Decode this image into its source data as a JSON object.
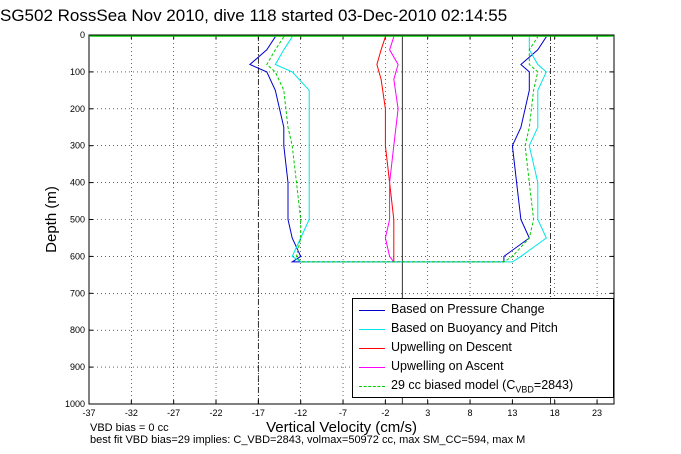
{
  "title": "SG502 RossSea Nov 2010, dive 118 started 03-Dec-2010 02:14:55",
  "notes": {
    "line1": "VBD bias = 0 cc",
    "line2": "best fit VBD bias=29 implies: C_VBD=2843, volmax=50972 cc, max SM_CC=594, max M"
  },
  "chart_data": {
    "type": "line",
    "xlabel": "Vertical Velocity (cm/s)",
    "ylabel": "Depth (m)",
    "xlim": [
      -37,
      25
    ],
    "ylim": [
      1000,
      0
    ],
    "x_ticks": [
      -37,
      -32,
      -27,
      -22,
      -17,
      -12,
      -7,
      -2,
      3,
      8,
      13,
      18,
      23
    ],
    "y_ticks": [
      0,
      100,
      200,
      300,
      400,
      500,
      600,
      700,
      800,
      900,
      1000
    ],
    "grid": true,
    "legend_position": "bottom-right",
    "reference_lines": {
      "vertical_solid": [
        0
      ],
      "vertical_dashdot": [
        -17,
        17.5
      ]
    },
    "series": [
      {
        "name": "Based on Pressure Change",
        "color": "#0000cc",
        "descent": [
          [
            -15,
            5
          ],
          [
            -16,
            40
          ],
          [
            -18,
            80
          ],
          [
            -16,
            100
          ],
          [
            -15,
            150
          ],
          [
            -14,
            250
          ],
          [
            -14,
            300
          ],
          [
            -13.5,
            400
          ],
          [
            -13.5,
            500
          ],
          [
            -13,
            550
          ],
          [
            -12,
            600
          ],
          [
            -13,
            615
          ]
        ],
        "ascent": [
          [
            17,
            5
          ],
          [
            16,
            40
          ],
          [
            14,
            80
          ],
          [
            15,
            100
          ],
          [
            15,
            150
          ],
          [
            14,
            250
          ],
          [
            13,
            300
          ],
          [
            13.5,
            400
          ],
          [
            14,
            500
          ],
          [
            15,
            550
          ],
          [
            12,
            600
          ],
          [
            12,
            615
          ]
        ]
      },
      {
        "name": "Based on Buoyancy and Pitch",
        "color": "#00e5e5",
        "descent": [
          [
            -13,
            5
          ],
          [
            -14,
            40
          ],
          [
            -15,
            80
          ],
          [
            -13,
            100
          ],
          [
            -11,
            150
          ],
          [
            -11,
            250
          ],
          [
            -11,
            300
          ],
          [
            -11,
            400
          ],
          [
            -11,
            500
          ],
          [
            -12,
            550
          ],
          [
            -13,
            600
          ],
          [
            -12,
            615
          ]
        ],
        "ascent": [
          [
            15,
            5
          ],
          [
            15,
            40
          ],
          [
            16,
            80
          ],
          [
            17,
            100
          ],
          [
            16,
            150
          ],
          [
            16,
            250
          ],
          [
            15,
            300
          ],
          [
            16,
            400
          ],
          [
            16,
            500
          ],
          [
            17,
            550
          ],
          [
            14,
            600
          ],
          [
            13,
            615
          ]
        ]
      },
      {
        "name": "Upwelling on Descent",
        "color": "#ff0000",
        "values": [
          [
            -2,
            5
          ],
          [
            -2.5,
            40
          ],
          [
            -3,
            80
          ],
          [
            -2.5,
            120
          ],
          [
            -2,
            200
          ],
          [
            -2,
            300
          ],
          [
            -1.5,
            400
          ],
          [
            -1,
            500
          ],
          [
            -1,
            550
          ],
          [
            -1,
            600
          ],
          [
            -1,
            615
          ]
        ]
      },
      {
        "name": "Upwelling on Ascent",
        "color": "#ff00ff",
        "values": [
          [
            -1,
            5
          ],
          [
            -1.5,
            40
          ],
          [
            -0.5,
            80
          ],
          [
            -1,
            120
          ],
          [
            -0.5,
            200
          ],
          [
            -1,
            300
          ],
          [
            -1.5,
            400
          ],
          [
            -1.5,
            500
          ],
          [
            -2,
            550
          ],
          [
            -1.5,
            600
          ],
          [
            -1,
            615
          ]
        ]
      },
      {
        "name": "29 cc biased model",
        "color": "#00cc00",
        "dashed": true,
        "descent": [
          [
            -14,
            5
          ],
          [
            -15,
            40
          ],
          [
            -16,
            80
          ],
          [
            -15,
            100
          ],
          [
            -14,
            150
          ],
          [
            -13.5,
            250
          ],
          [
            -13,
            300
          ],
          [
            -12.5,
            400
          ],
          [
            -12,
            500
          ],
          [
            -12,
            550
          ],
          [
            -12.5,
            600
          ],
          [
            -12,
            615
          ]
        ],
        "ascent": [
          [
            16,
            5
          ],
          [
            15,
            40
          ],
          [
            15,
            80
          ],
          [
            16,
            100
          ],
          [
            15.5,
            150
          ],
          [
            15,
            250
          ],
          [
            14.5,
            300
          ],
          [
            15,
            400
          ],
          [
            15.5,
            500
          ],
          [
            15,
            550
          ],
          [
            13,
            600
          ],
          [
            12,
            615
          ]
        ]
      }
    ]
  },
  "legend": {
    "items": [
      {
        "text": "Based on Pressure Change",
        "color": "#0000cc"
      },
      {
        "text": "Based on Buoyancy and Pitch",
        "color": "#00e5e5"
      },
      {
        "text": "Upwelling on Descent",
        "color": "#ff0000"
      },
      {
        "text": "Upwelling on Ascent",
        "color": "#ff00ff"
      },
      {
        "text": "29 cc biased model (C",
        "sub": "VBD",
        "tail": "=2843)",
        "color": "#00cc00",
        "dashed": true
      }
    ]
  }
}
